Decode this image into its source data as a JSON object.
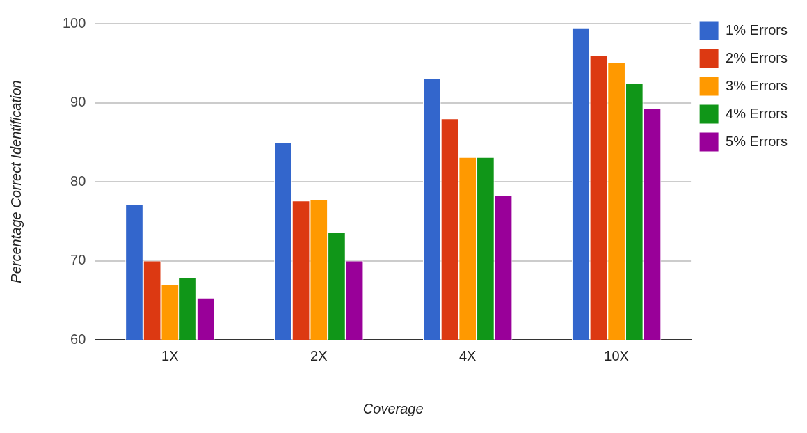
{
  "chart_data": {
    "type": "bar",
    "xlabel": "Coverage",
    "ylabel": "Percentage Correct Identification",
    "categories": [
      "1X",
      "2X",
      "4X",
      "10X"
    ],
    "series": [
      {
        "name": "1% Errors",
        "color": "#3366cc",
        "values": [
          77.1,
          85.0,
          93.1,
          99.5
        ]
      },
      {
        "name": "2% Errors",
        "color": "#dc3912",
        "values": [
          70.0,
          77.6,
          88.0,
          96.0
        ]
      },
      {
        "name": "3% Errors",
        "color": "#ff9900",
        "values": [
          67.0,
          77.8,
          83.1,
          95.1
        ]
      },
      {
        "name": "4% Errors",
        "color": "#109618",
        "values": [
          67.9,
          73.6,
          83.1,
          92.5
        ]
      },
      {
        "name": "5% Errors",
        "color": "#990099",
        "values": [
          65.3,
          70.0,
          78.3,
          89.3
        ]
      }
    ],
    "ylim": [
      60,
      100
    ],
    "yticks": [
      60,
      70,
      80,
      90,
      100
    ],
    "grid": "y",
    "legend": "top right"
  }
}
